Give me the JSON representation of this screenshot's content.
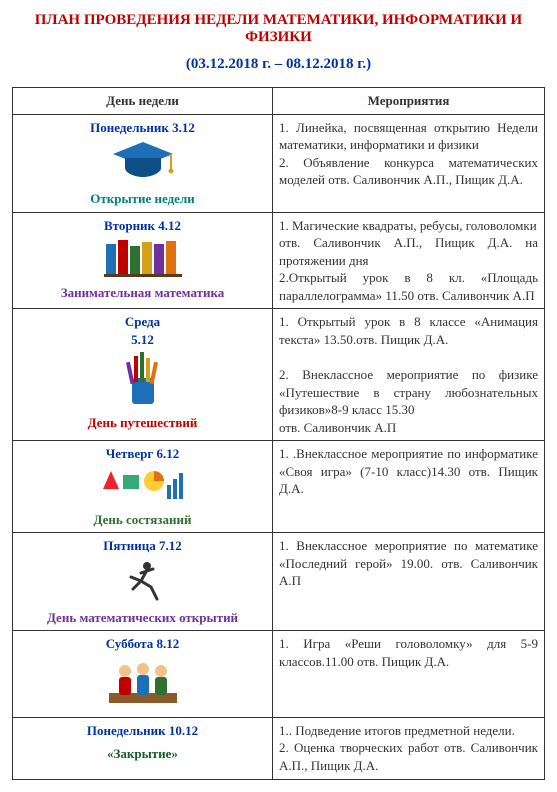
{
  "colors": {
    "red": "#c00000",
    "blue": "#0033a0",
    "teal": "#008080",
    "purple": "#7030a0",
    "green": "#2f6f2f",
    "dkgreen": "#155e27",
    "black": "#333333"
  },
  "title": "ПЛАН ПРОВЕДЕНИЯ НЕДЕЛИ МАТЕМАТИКИ, ИНФОРМАТИКИ И ФИЗИКИ",
  "title_color_key": "red",
  "dates": "(03.12.2018 г. – 08.12.2018 г.)",
  "dates_color_key": "blue",
  "header_day": "День недели",
  "header_events": "Мероприятия",
  "rows": [
    {
      "day_title": "Понедельник   3.12",
      "day_title_color_key": "blue",
      "subtitle": "Открытие недели",
      "subtitle_color_key": "teal",
      "icon": "grad-cap",
      "events": "1. Линейка, посвященная открытию Недели математики, информатики и физики\n2. Объявление конкурса математических моделей отв. Саливончик А.П., Пищик Д.А."
    },
    {
      "day_title": "Вторник 4.12",
      "day_title_color_key": "blue",
      "subtitle": "Занимательная математика",
      "subtitle_color_key": "purple",
      "icon": "books",
      "events": "1. Магические квадраты, ребусы, головоломки\nотв. Саливончик А.П., Пищик Д.А. на протяжении дня\n2.Открытый урок в 8 кл. «Площадь параллелограмма» 11.50 отв. Саливончик А.П"
    },
    {
      "day_title": "Среда\n5.12",
      "day_title_color_key": "blue",
      "subtitle": "День путешествий",
      "subtitle_color_key": "red",
      "icon": "pencils",
      "events": "1. Открытый урок в 8 классе «Анимация текста» 13.50.отв. Пищик Д.А.\n\n2. Внеклассное мероприятие по физике «Путешествие в страну любознательных физиков»8-9 класс 15.30\nотв. Саливончик А.П"
    },
    {
      "day_title": "Четверг 6.12",
      "day_title_color_key": "blue",
      "subtitle": "День состязаний",
      "subtitle_color_key": "green",
      "icon": "chart-shapes",
      "events": "1. .Внеклассное мероприятие по информатике «Своя игра» (7-10 класс)14.30 отв. Пищик Д.А."
    },
    {
      "day_title": "Пятница 7.12",
      "day_title_color_key": "blue",
      "subtitle": "День математических открытий",
      "subtitle_color_key": "purple",
      "icon": "running",
      "events": "1. Внеклассное мероприятие по математике «Последний герой» 19.00. отв. Саливончик А.П"
    },
    {
      "day_title": "Суббота 8.12",
      "day_title_color_key": "blue",
      "subtitle": "",
      "subtitle_color_key": "black",
      "icon": "students",
      "events": "1. Игра «Реши головоломку» для 5-9 классов.11.00 отв. Пищик Д.А."
    },
    {
      "day_title": "Понедельник  10.12",
      "day_title_color_key": "blue",
      "subtitle": "«Закрытие»",
      "subtitle_color_key": "dkgreen",
      "icon": "",
      "events": "1.. Подведение итогов предметной недели.\n2. Оценка творческих работ отв. Саливончик А.П., Пищик Д.А."
    }
  ]
}
